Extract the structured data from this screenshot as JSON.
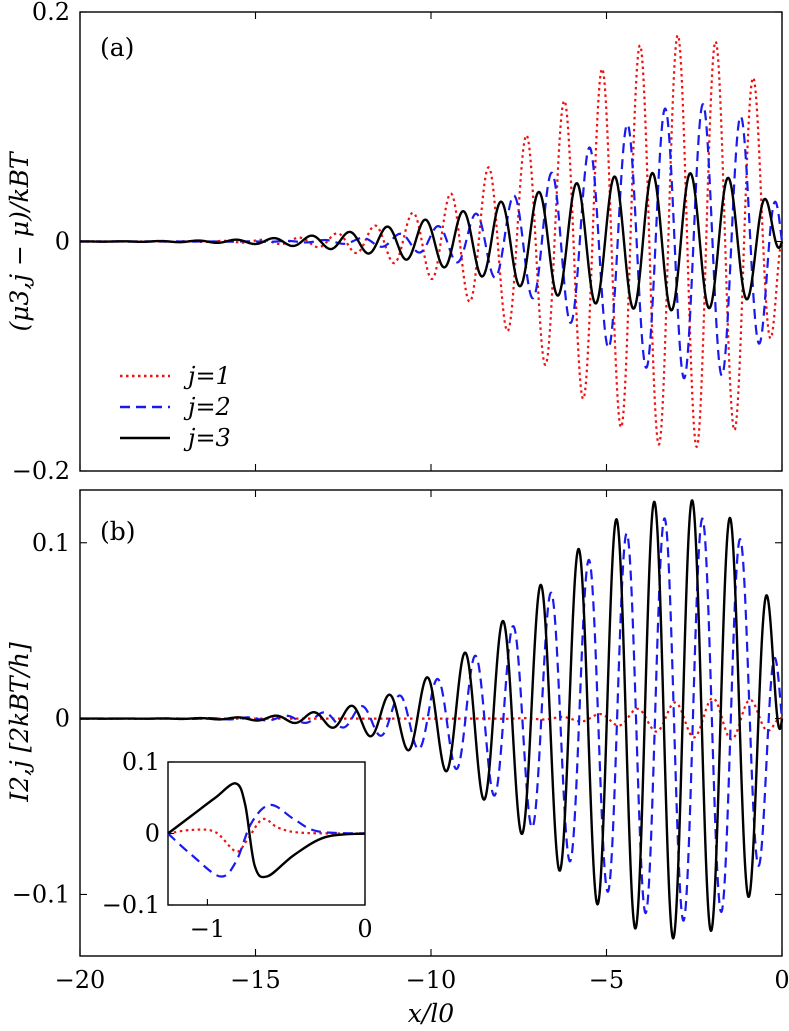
{
  "chart_data": [
    {
      "type": "line",
      "panel_label": "(a)",
      "ylabel": "(μ3,j − μ)/kBT",
      "xlim": [
        -20,
        0
      ],
      "ylim": [
        -0.2,
        0.2
      ],
      "xticks": [
        -20,
        -15,
        -10,
        -5,
        0
      ],
      "yticks": [
        -0.2,
        0,
        0.2
      ],
      "ytick_labels": [
        "−0.2",
        "0",
        "0.2"
      ],
      "legend_position": "lower-left",
      "series": [
        {
          "name": "j=1",
          "color": "#ee1111",
          "style": "dotted",
          "amplitude": 0.18,
          "envelope_peak_x": -2.8,
          "envelope_width": 5.5,
          "period": 1.08,
          "phase": 0.0
        },
        {
          "name": "j=2",
          "color": "#1a1aee",
          "style": "dashed",
          "amplitude": 0.12,
          "envelope_peak_x": -2.4,
          "envelope_width": 5.0,
          "period": 1.08,
          "phase": 2.1
        },
        {
          "name": "j=3",
          "color": "#000000",
          "style": "solid",
          "amplitude": 0.06,
          "envelope_peak_x": -3.2,
          "envelope_width": 6.5,
          "period": 1.08,
          "phase": 4.2
        }
      ]
    },
    {
      "type": "line",
      "panel_label": "(b)",
      "ylabel": "I2,j [2kBT/h]",
      "xlabel": "x/l0",
      "xlim": [
        -20,
        0
      ],
      "ylim": [
        -0.135,
        0.13
      ],
      "xticks": [
        -20,
        -15,
        -10,
        -5,
        0
      ],
      "xtick_labels": [
        "−20",
        "−15",
        "−10",
        "−5",
        "0"
      ],
      "yticks": [
        -0.1,
        0,
        0.1
      ],
      "ytick_labels": [
        "−0.1",
        "0",
        "0.1"
      ],
      "series": [
        {
          "name": "j=1",
          "color": "#ee1111",
          "style": "dotted",
          "amplitude": 0.012,
          "envelope_peak_x": -1.5,
          "envelope_width": 3.0,
          "period": 1.08,
          "phase": 0.5
        },
        {
          "name": "j=2",
          "color": "#1a1aee",
          "style": "dashed",
          "amplitude": 0.115,
          "envelope_peak_x": -2.8,
          "envelope_width": 5.5,
          "period": 1.08,
          "phase": 2.2
        },
        {
          "name": "j=3",
          "color": "#000000",
          "style": "solid",
          "amplitude": 0.125,
          "envelope_peak_x": -3.0,
          "envelope_width": 5.5,
          "period": 1.08,
          "phase": 3.9
        }
      ],
      "inset": {
        "xlim": [
          -1.25,
          0
        ],
        "ylim": [
          -0.1,
          0.1
        ],
        "xticks": [
          -1,
          0
        ],
        "xtick_labels": [
          "−1",
          "0"
        ],
        "yticks": [
          -0.1,
          0,
          0.1
        ],
        "ytick_labels": [
          "−0.1",
          "0",
          "0.1"
        ],
        "series": [
          {
            "name": "j=1",
            "points": [
              [
                -1.25,
                0.0
              ],
              [
                -1.1,
                0.005
              ],
              [
                -0.95,
                0.002
              ],
              [
                -0.82,
                -0.025
              ],
              [
                -0.75,
                -0.01
              ],
              [
                -0.65,
                0.02
              ],
              [
                -0.55,
                0.008
              ],
              [
                -0.4,
                0.001
              ],
              [
                0.0,
                0.0
              ]
            ]
          },
          {
            "name": "j=2",
            "points": [
              [
                -1.25,
                0.0
              ],
              [
                -1.1,
                -0.03
              ],
              [
                -0.92,
                -0.06
              ],
              [
                -0.82,
                -0.04
              ],
              [
                -0.72,
                0.015
              ],
              [
                -0.6,
                0.04
              ],
              [
                -0.45,
                0.02
              ],
              [
                -0.3,
                0.003
              ],
              [
                0.0,
                0.0
              ]
            ]
          },
          {
            "name": "j=3",
            "points": [
              [
                -1.25,
                0.0
              ],
              [
                -1.1,
                0.025
              ],
              [
                -0.95,
                0.05
              ],
              [
                -0.82,
                0.07
              ],
              [
                -0.76,
                0.04
              ],
              [
                -0.7,
                -0.045
              ],
              [
                -0.62,
                -0.06
              ],
              [
                -0.45,
                -0.03
              ],
              [
                -0.25,
                -0.005
              ],
              [
                0.0,
                0.0
              ]
            ]
          }
        ]
      }
    }
  ]
}
